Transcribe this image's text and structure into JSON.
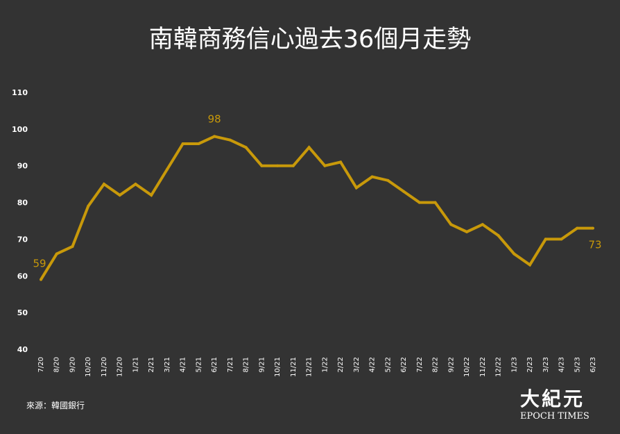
{
  "title": "南韓商務信心過去36個月走勢",
  "source": "來源：韓國銀行",
  "logo": {
    "chinese": "大紀元",
    "english": "EPOCH TIMES"
  },
  "colors": {
    "background": "#333333",
    "line": "#C8990A",
    "text": "#ffffff"
  },
  "chart_data": {
    "type": "line",
    "title": "南韓商務信心過去36個月走勢",
    "ylim": [
      40,
      110
    ],
    "yticks": [
      40,
      50,
      60,
      70,
      80,
      90,
      100,
      110
    ],
    "grid": false,
    "categories": [
      "7/20",
      "8/20",
      "9/20",
      "10/20",
      "11/20",
      "12/20",
      "1/21",
      "2/21",
      "3/21",
      "4/21",
      "5/21",
      "6/21",
      "7/21",
      "8/21",
      "9/21",
      "10/21",
      "11/21",
      "12/21",
      "1/22",
      "2/22",
      "3/22",
      "4/22",
      "5/22",
      "6/22",
      "7/22",
      "8/22",
      "9/22",
      "10/22",
      "11/22",
      "12/22",
      "1/23",
      "2/23",
      "3/23",
      "4/23",
      "5/23",
      "6/23"
    ],
    "values": [
      59,
      66,
      68,
      79,
      85,
      82,
      85,
      82,
      89,
      96,
      96,
      98,
      97,
      95,
      90,
      90,
      90,
      95,
      90,
      91,
      84,
      87,
      86,
      83,
      80,
      80,
      74,
      72,
      74,
      71,
      66,
      63,
      70,
      70,
      73,
      73
    ],
    "annotations": [
      {
        "label": "59",
        "index": 0
      },
      {
        "label": "98",
        "index": 11
      },
      {
        "label": "73",
        "index": 35
      }
    ]
  }
}
